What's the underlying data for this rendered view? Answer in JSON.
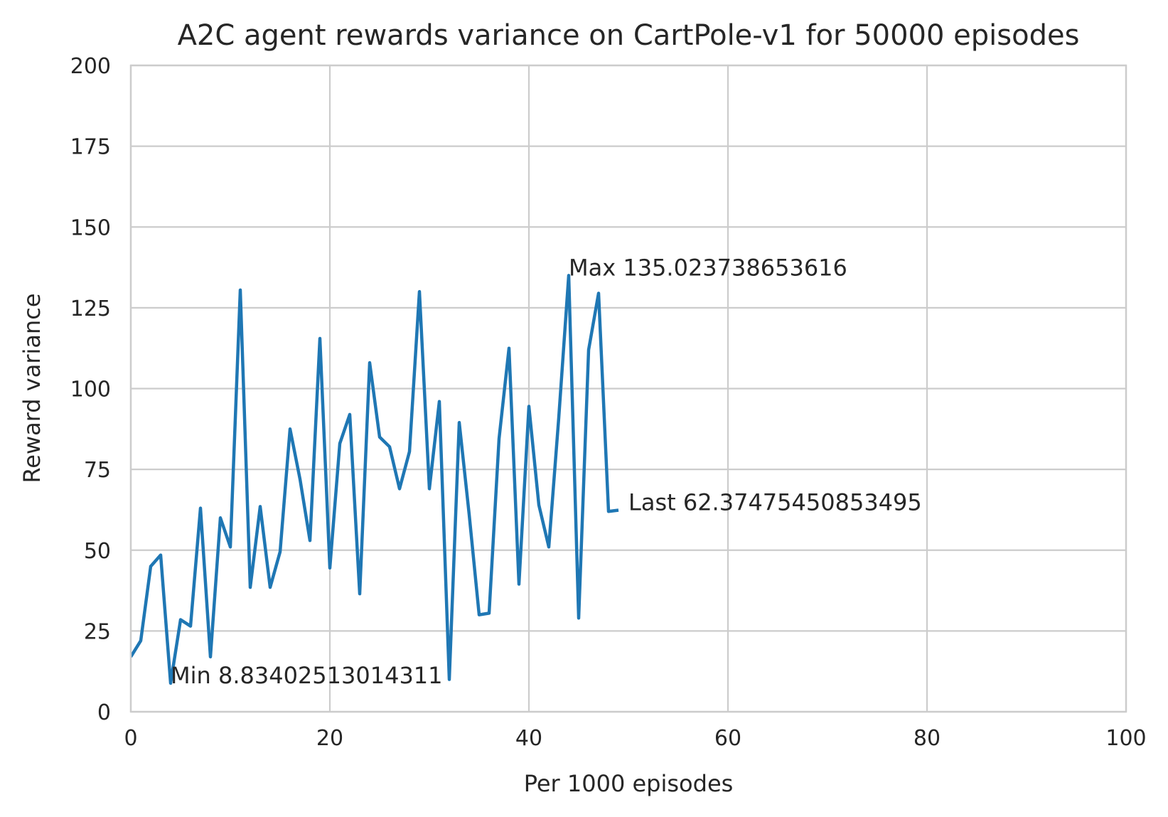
{
  "chart_data": {
    "type": "line",
    "title": "A2C agent rewards variance on CartPole-v1 for 50000 episodes",
    "xlabel": "Per 1000 episodes",
    "ylabel": "Reward variance",
    "xlim": [
      0,
      100
    ],
    "ylim": [
      0,
      200
    ],
    "xticks": [
      "0",
      "20",
      "40",
      "60",
      "80",
      "100"
    ],
    "yticks": [
      "0",
      "25",
      "50",
      "75",
      "100",
      "125",
      "150",
      "175",
      "200"
    ],
    "grid": true,
    "series": [
      {
        "color": "#1f77b4",
        "x": [
          0,
          1,
          2,
          3,
          4,
          5,
          6,
          7,
          8,
          9,
          10,
          11,
          12,
          13,
          14,
          15,
          16,
          17,
          18,
          19,
          20,
          21,
          22,
          23,
          24,
          25,
          26,
          27,
          28,
          29,
          30,
          31,
          32,
          33,
          34,
          35,
          36,
          37,
          38,
          39,
          40,
          41,
          42,
          43,
          44,
          45,
          46,
          47,
          48,
          49
        ],
        "y": [
          17,
          22,
          45,
          48.5,
          8.834,
          28.5,
          26.5,
          63,
          17,
          60,
          51,
          130.5,
          38.5,
          63.5,
          38.5,
          49.5,
          87.5,
          72,
          53,
          115.5,
          44.5,
          83,
          92,
          36.5,
          108,
          85,
          82,
          69,
          80.5,
          130,
          69,
          96,
          10,
          89.5,
          61,
          30,
          30.5,
          84.5,
          112.5,
          39.5,
          94.5,
          64,
          51,
          91,
          135.024,
          29,
          112,
          129.5,
          62,
          62.375
        ]
      }
    ],
    "annotations": [
      {
        "text": "Min 8.83402513014311",
        "x": 4,
        "y": 8.834
      },
      {
        "text": "Max 135.023738653616",
        "x": 44,
        "y": 135.024
      },
      {
        "text": "Last 62.37475450853495",
        "x": 50,
        "y": 62.375
      }
    ]
  }
}
